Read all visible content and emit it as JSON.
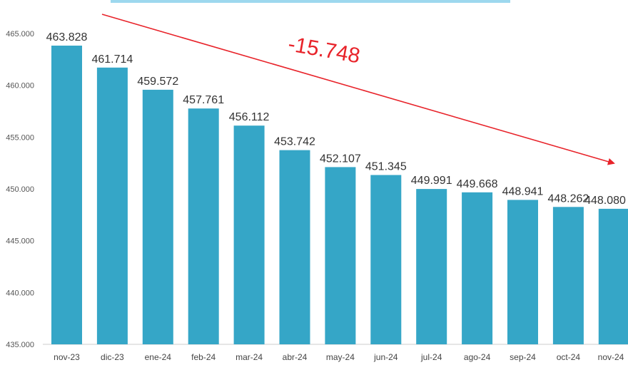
{
  "chart_data": {
    "type": "bar",
    "title": "",
    "xlabel": "",
    "ylabel": "",
    "categories": [
      "nov-23",
      "dic-23",
      "ene-24",
      "feb-24",
      "mar-24",
      "abr-24",
      "may-24",
      "jun-24",
      "jul-24",
      "ago-24",
      "sep-24",
      "oct-24",
      "nov-24"
    ],
    "values": [
      463828,
      461714,
      459572,
      457761,
      456112,
      453742,
      452107,
      451345,
      449991,
      449668,
      448941,
      448262,
      448080
    ],
    "value_labels": [
      "463.828",
      "461.714",
      "459.572",
      "457.761",
      "456.112",
      "453.742",
      "452.107",
      "451.345",
      "449.991",
      "449.668",
      "448.941",
      "448.262",
      "448.080"
    ],
    "ylim": [
      435000,
      465000
    ],
    "yticks": [
      435000,
      440000,
      445000,
      450000,
      455000,
      460000,
      465000
    ],
    "ytick_labels": [
      "435.000",
      "440.000",
      "445.000",
      "450.000",
      "455.000",
      "460.000",
      "465.000"
    ],
    "grid": false,
    "bar_color": "#35a6c7",
    "annotation": {
      "text": "-15.748",
      "color": "#e8232a",
      "arrow": "trend arrow from top-left to bottom-right"
    }
  }
}
